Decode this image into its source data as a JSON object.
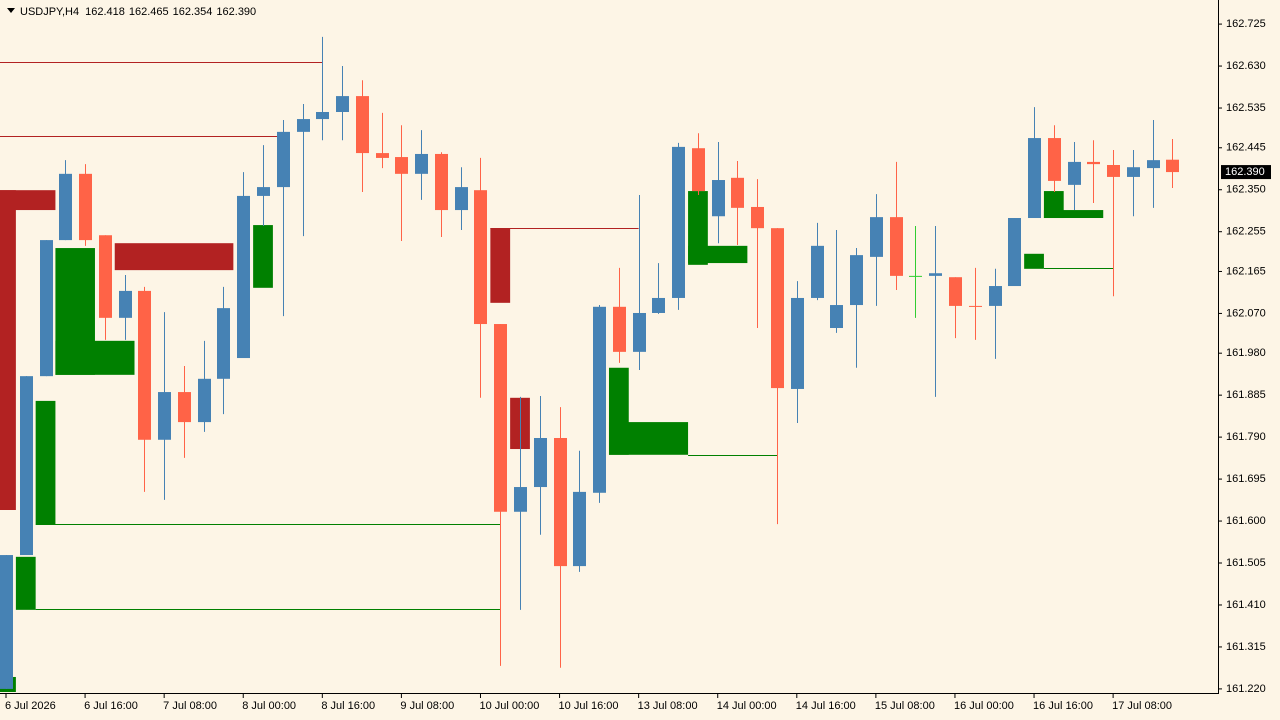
{
  "chart_data": {
    "type": "candlestick",
    "title": "USDJPY,H4",
    "ohlc_labels": [
      "162.418",
      "162.465",
      "162.354",
      "162.390"
    ],
    "categories": [
      "6 Jul 2026",
      null,
      null,
      null,
      "6 Jul 16:00",
      null,
      null,
      null,
      "7 Jul 08:00",
      null,
      null,
      null,
      "8 Jul 00:00",
      null,
      null,
      null,
      "8 Jul 16:00",
      null,
      null,
      null,
      "9 Jul 08:00",
      null,
      null,
      null,
      "10 Jul 00:00",
      null,
      null,
      null,
      "10 Jul 16:00",
      null,
      null,
      null,
      "13 Jul 08:00",
      null,
      null,
      null,
      "14 Jul 00:00",
      null,
      null,
      null,
      "14 Jul 16:00",
      null,
      null,
      null,
      "15 Jul 08:00",
      null,
      null,
      null,
      "16 Jul 00:00",
      null,
      null,
      null,
      "16 Jul 16:00",
      null,
      null,
      null,
      "17 Jul 08:00",
      null,
      null,
      null
    ],
    "open": [
      161.22,
      161.523,
      161.928,
      162.236,
      162.386,
      162.247,
      162.06,
      162.121,
      161.784,
      161.892,
      161.824,
      161.922,
      161.969,
      162.336,
      162.356,
      162.481,
      162.51,
      162.526,
      162.562,
      162.433,
      162.424,
      162.386,
      162.431,
      162.304,
      162.349,
      162.046,
      161.621,
      161.677,
      161.788,
      161.498,
      161.664,
      162.085,
      161.983,
      162.071,
      162.105,
      162.444,
      162.29,
      162.377,
      162.311,
      162.263,
      161.899,
      162.105,
      162.037,
      162.089,
      162.198,
      162.288,
      162.155,
      162.155,
      162.152,
      162.087,
      162.087,
      162.132,
      162.286,
      162.467,
      162.361,
      162.413,
      162.406,
      162.379,
      162.399,
      162.418
    ],
    "high": [
      161.523,
      161.928,
      162.236,
      162.417,
      162.408,
      162.247,
      162.157,
      162.13,
      162.073,
      161.951,
      162.008,
      162.13,
      162.39,
      162.451,
      162.508,
      162.544,
      162.696,
      162.63,
      162.598,
      162.524,
      162.496,
      162.485,
      162.435,
      162.401,
      162.422,
      162.046,
      161.881,
      161.883,
      161.858,
      161.759,
      162.089,
      162.173,
      162.338,
      162.184,
      162.456,
      162.478,
      162.458,
      162.415,
      162.374,
      162.263,
      162.143,
      162.275,
      162.259,
      162.218,
      162.34,
      162.413,
      162.268,
      162.268,
      162.152,
      162.173,
      162.171,
      162.286,
      162.537,
      162.496,
      162.458,
      162.462,
      162.44,
      162.44,
      162.508,
      162.465
    ],
    "low": [
      161.22,
      161.523,
      161.928,
      162.236,
      162.223,
      162.01,
      162.01,
      161.666,
      161.648,
      161.743,
      161.802,
      161.842,
      161.969,
      162.268,
      162.064,
      162.245,
      162.462,
      162.462,
      162.345,
      162.399,
      162.234,
      162.327,
      162.243,
      162.259,
      161.879,
      161.272,
      161.399,
      161.569,
      161.268,
      161.485,
      161.641,
      161.958,
      161.942,
      162.069,
      162.078,
      162.338,
      162.229,
      162.225,
      162.037,
      161.593,
      161.822,
      162.1,
      162.026,
      161.947,
      162.087,
      162.123,
      162.06,
      161.881,
      162.014,
      162.01,
      161.967,
      162.132,
      162.286,
      162.345,
      162.304,
      162.32,
      162.109,
      162.29,
      162.309,
      162.354
    ],
    "close": [
      161.523,
      161.928,
      162.236,
      162.386,
      162.236,
      162.06,
      162.121,
      161.784,
      161.892,
      161.824,
      161.922,
      162.082,
      162.336,
      162.356,
      162.481,
      162.51,
      162.526,
      162.562,
      162.433,
      162.422,
      162.386,
      162.431,
      162.304,
      162.356,
      162.046,
      161.621,
      161.677,
      161.788,
      161.498,
      161.666,
      162.085,
      161.983,
      162.071,
      162.105,
      162.447,
      162.347,
      162.372,
      162.309,
      162.263,
      161.901,
      162.105,
      162.223,
      162.089,
      162.202,
      162.288,
      162.155,
      162.155,
      162.161,
      162.087,
      162.085,
      162.132,
      162.286,
      162.467,
      162.37,
      162.413,
      162.408,
      162.379,
      162.401,
      162.417,
      162.39
    ],
    "up_color": "#4682b4",
    "down_color": "#ff6347",
    "doji_color": "#32cd32",
    "zones": [
      {
        "start": 0,
        "end": 2,
        "top": 162.349,
        "bottom": 162.304,
        "color": "#b22222"
      },
      {
        "start": 0,
        "end": 0,
        "top": 162.349,
        "bottom": 161.625,
        "color": "#b22222"
      },
      {
        "start": 6,
        "end": 11,
        "top": 162.229,
        "bottom": 162.168,
        "color": "#b22222"
      },
      {
        "start": 25,
        "end": 25,
        "top": 162.263,
        "bottom": 162.094,
        "color": "#b22222"
      },
      {
        "start": 26,
        "end": 26,
        "top": 161.879,
        "bottom": 161.763,
        "color": "#b22222"
      },
      {
        "start": 0,
        "end": 0,
        "top": 161.247,
        "bottom": 161.213,
        "color": "#008000"
      },
      {
        "start": 1,
        "end": 1,
        "top": 161.519,
        "bottom": 161.399,
        "color": "#008000"
      },
      {
        "start": 2,
        "end": 2,
        "top": 161.872,
        "bottom": 161.593,
        "color": "#008000"
      },
      {
        "start": 3,
        "end": 4,
        "top": 162.218,
        "bottom": 161.931,
        "color": "#008000"
      },
      {
        "start": 3,
        "end": 6,
        "top": 162.008,
        "bottom": 161.931,
        "color": "#008000"
      },
      {
        "start": 13,
        "end": 13,
        "top": 162.27,
        "bottom": 162.128,
        "color": "#008000"
      },
      {
        "start": 31,
        "end": 31,
        "top": 161.947,
        "bottom": 161.75,
        "color": "#008000"
      },
      {
        "start": 31,
        "end": 34,
        "top": 161.824,
        "bottom": 161.75,
        "color": "#008000"
      },
      {
        "start": 35,
        "end": 35,
        "top": 162.347,
        "bottom": 162.18,
        "color": "#008000"
      },
      {
        "start": 35,
        "end": 37,
        "top": 162.223,
        "bottom": 162.184,
        "color": "#008000"
      },
      {
        "start": 52,
        "end": 52,
        "top": 162.205,
        "bottom": 162.171,
        "color": "#008000"
      },
      {
        "start": 53,
        "end": 53,
        "top": 162.347,
        "bottom": 162.286,
        "color": "#008000"
      },
      {
        "start": 53,
        "end": 55,
        "top": 162.304,
        "bottom": 162.286,
        "color": "#008000"
      }
    ],
    "levels": [
      {
        "start": 0,
        "end": 16,
        "level": 162.639,
        "color": "#b22222"
      },
      {
        "start": 0,
        "end": 14,
        "level": 162.472,
        "color": "#b22222"
      },
      {
        "start": 25,
        "end": 32,
        "level": 162.263,
        "color": "#b22222"
      },
      {
        "start": 2,
        "end": 25,
        "level": 161.593,
        "color": "#008000"
      },
      {
        "start": 2,
        "end": 25,
        "level": 161.401,
        "color": "#008000"
      },
      {
        "start": 35,
        "end": 39,
        "level": 161.75,
        "color": "#008000"
      },
      {
        "start": 53,
        "end": 56,
        "level": 162.173,
        "color": "#008000"
      }
    ],
    "current_price": {
      "value": 162.39,
      "label": "162.390"
    },
    "ylim": [
      161.213,
      162.775
    ],
    "yticks": [
      162.725,
      {
        "value": 162.63,
        "label": "162.630"
      },
      162.535,
      162.445,
      {
        "value": 162.35,
        "label": "162.350"
      },
      162.255,
      162.165,
      {
        "value": 162.07,
        "label": "162.070"
      },
      {
        "value": 161.98,
        "label": "161.980"
      },
      161.885,
      {
        "value": 161.79,
        "label": "161.790"
      },
      161.695,
      {
        "value": 161.6,
        "label": "161.600"
      },
      161.505,
      {
        "value": 161.41,
        "label": "161.410"
      },
      161.315,
      {
        "value": 161.22,
        "label": "161.220"
      }
    ]
  }
}
